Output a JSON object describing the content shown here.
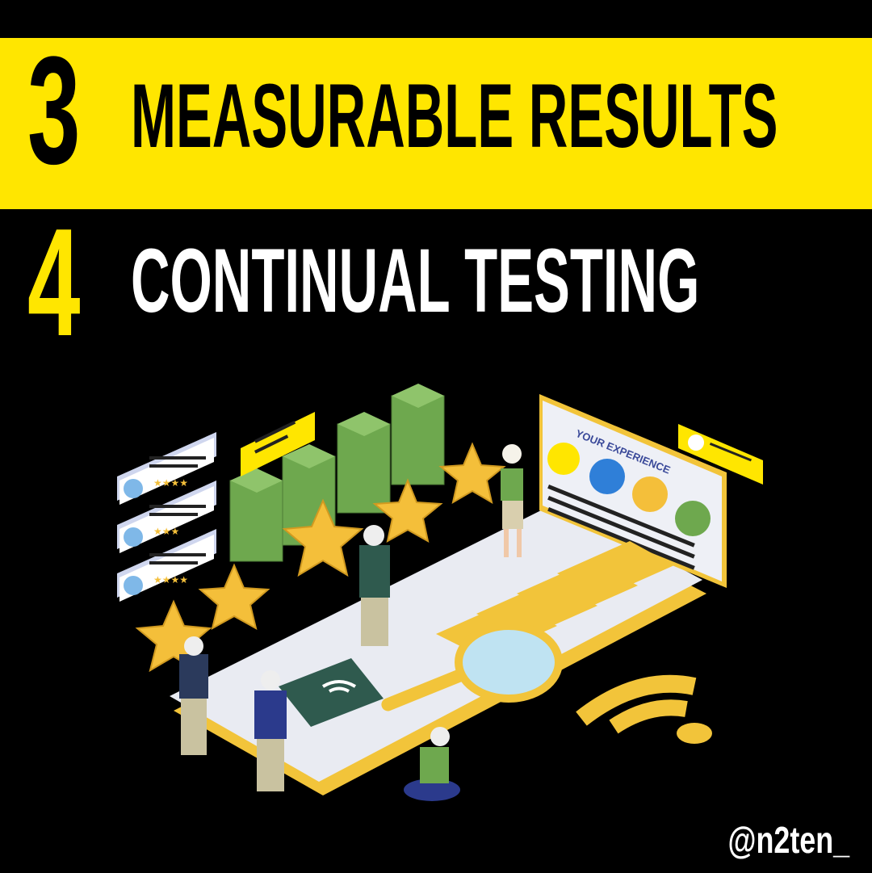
{
  "items": [
    {
      "number": "3",
      "title": "MEASURABLE RESULTS"
    },
    {
      "number": "4",
      "title": "CONTINUAL TESTING"
    }
  ],
  "illustration": {
    "banner_text": "YOUR EXPERIENCE"
  },
  "handle": "@n2ten_",
  "colors": {
    "accent": "#ffe600",
    "background": "#000000",
    "green": "#6ea84e",
    "star": "#f4bf3a"
  }
}
